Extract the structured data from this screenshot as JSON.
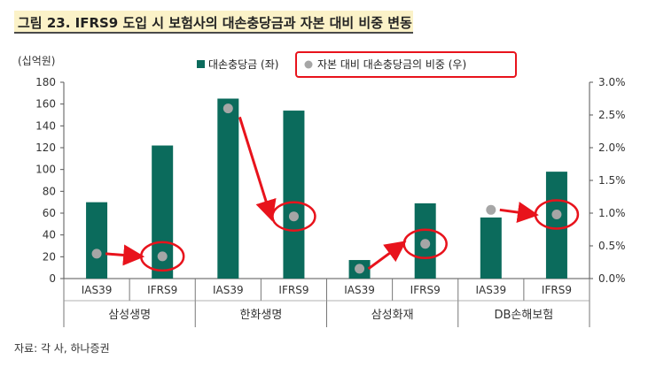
{
  "title": "그림 23. IFRS9 도입 시 보험사의 대손충당금과 자본 대비 비중 변동",
  "source": "자료: 각 사, 하나증권",
  "colors": {
    "bar": "#0b6b5c",
    "point": "#a6a6a6",
    "arrow": "#e8131c",
    "title_bg": "#fbf2c8"
  },
  "chart_data": {
    "type": "bar",
    "unit_label": "(십억원)",
    "groups": [
      "삼성생명",
      "한화생명",
      "삼성화재",
      "DB손해보험"
    ],
    "categories": [
      "IAS39",
      "IFRS9",
      "IAS39",
      "IFRS9",
      "IAS39",
      "IFRS9",
      "IAS39",
      "IFRS9"
    ],
    "series": [
      {
        "name": "대손충당금 (좌)",
        "axis": "left",
        "values": [
          70,
          122,
          165,
          154,
          17,
          69,
          56,
          98
        ]
      },
      {
        "name": "자본 대비 대손충당금의 비중 (우)",
        "axis": "right",
        "values": [
          0.38,
          0.34,
          2.6,
          0.95,
          0.15,
          0.53,
          1.05,
          0.98
        ]
      }
    ],
    "left_axis": {
      "min": 0,
      "max": 180,
      "ticks": [
        "0",
        "20",
        "40",
        "60",
        "80",
        "100",
        "120",
        "140",
        "160",
        "180"
      ]
    },
    "right_axis": {
      "min": 0,
      "max": 3.0,
      "ticks": [
        "0.0%",
        "0.5%",
        "1.0%",
        "1.5%",
        "2.0%",
        "2.5%",
        "3.0%"
      ]
    },
    "highlights": [
      1,
      3,
      5,
      7
    ],
    "arrows": [
      [
        0,
        1
      ],
      [
        2,
        3
      ],
      [
        4,
        5
      ],
      [
        6,
        7
      ]
    ],
    "legend_highlight": "자본 대비 대손충당금의 비중 (우)"
  }
}
